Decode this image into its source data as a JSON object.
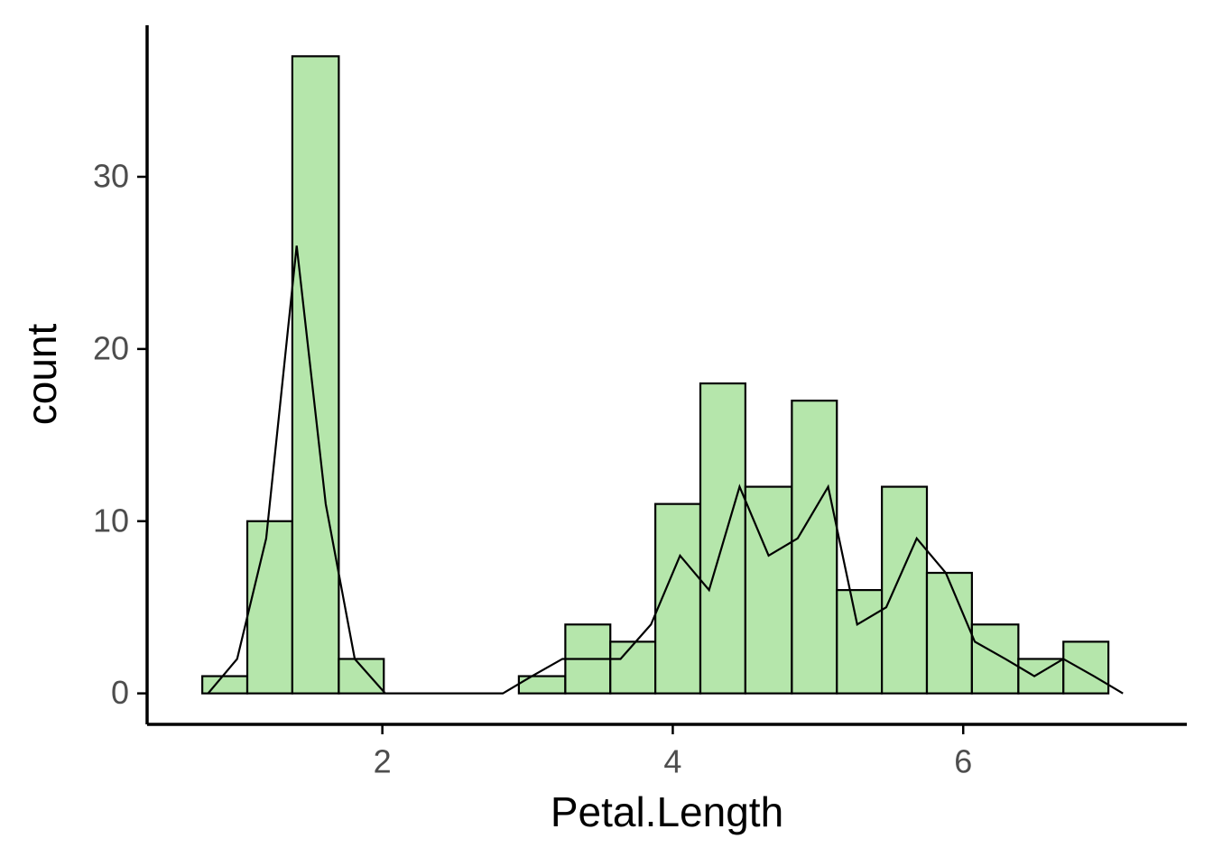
{
  "chart_data": {
    "type": "histogram",
    "xlabel": "Petal.Length",
    "ylabel": "count",
    "bins": [
      0.76,
      1.07,
      1.38,
      1.7,
      2.01,
      2.32,
      2.63,
      2.94,
      3.26,
      3.57,
      3.88,
      4.19,
      4.5,
      4.82,
      5.13,
      5.44,
      5.75,
      6.06,
      6.38,
      6.69,
      7.0
    ],
    "counts": [
      1,
      10,
      37,
      2,
      0,
      0,
      0,
      1,
      4,
      3,
      11,
      18,
      12,
      17,
      6,
      12,
      7,
      4,
      2,
      3
    ],
    "color": "#b5e6ab",
    "edgecolor": "#000000",
    "line": {
      "type": "line",
      "color": "#000000",
      "x": [
        0.8,
        1.0,
        1.2,
        1.41,
        1.61,
        1.81,
        2.02,
        2.22,
        2.42,
        2.63,
        2.83,
        3.03,
        3.24,
        3.44,
        3.64,
        3.85,
        4.05,
        4.25,
        4.46,
        4.66,
        4.86,
        5.07,
        5.27,
        5.47,
        5.68,
        5.88,
        6.08,
        6.29,
        6.49,
        6.69,
        6.9,
        7.1
      ],
      "values": [
        0,
        2,
        9,
        26,
        11,
        2,
        0,
        0,
        0,
        0,
        0,
        1,
        2,
        2,
        2,
        4,
        8,
        6,
        12,
        8,
        9,
        12,
        4,
        5,
        9,
        7,
        3,
        2,
        1,
        2,
        1,
        0
      ]
    },
    "xlim": [
      0.38,
      7.54
    ],
    "ylim": [
      -1.8,
      38.8
    ],
    "xticks": [
      2,
      4,
      6
    ],
    "yticks": [
      0,
      10,
      20,
      30
    ],
    "grid": false
  }
}
